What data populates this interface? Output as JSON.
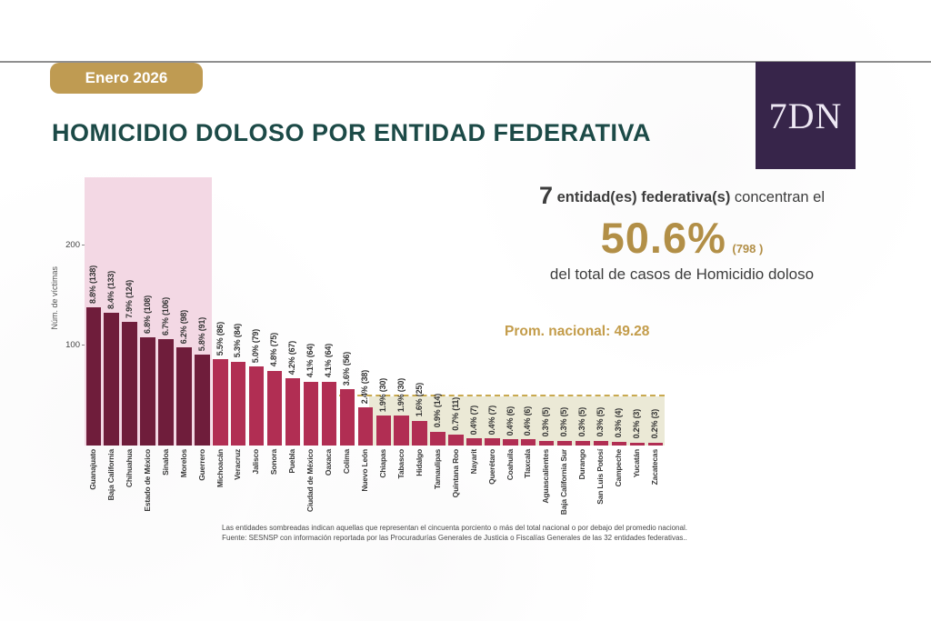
{
  "page": {
    "badge": "Enero 2026",
    "title": "HOMICIDIO DOLOSO POR ENTIDAD FEDERATIVA",
    "logo": "7DN"
  },
  "stats": {
    "count": "7",
    "count_label": "entidad(es) federativa(s)",
    "suffix": "concentran el",
    "percent": "50.6%",
    "total_cases": "(798 )",
    "of_total": "del total de casos de",
    "crime_type": "Homicidio doloso",
    "national_avg_label": "Prom. nacional: 49.28"
  },
  "footnote": {
    "line1": "Las entidades sombreadas indican aquellas que representan el cincuenta porciento o más del total nacional o por debajo del promedio nacional.",
    "line2": "Fuente: SESNSP con información reportada por las Procuradurías Generales de Justicia o Fiscalías Generales de las 32 entidades federativas.."
  },
  "chart_data": {
    "type": "bar",
    "title": "Homicidio doloso por entidad federativa, Enero 2026",
    "ylabel": "Núm. de víctimas",
    "yticks": [
      100,
      200
    ],
    "ylim": [
      0,
      268
    ],
    "grid": false,
    "national_average": 49.28,
    "highlight_top_n": 7,
    "categories": [
      "Guanajuato",
      "Baja California",
      "Chihuahua",
      "Estado de México",
      "Sinaloa",
      "Morelos",
      "Guerrero",
      "Michoacán",
      "Veracruz",
      "Jalisco",
      "Sonora",
      "Puebla",
      "Ciudad de México",
      "Oaxaca",
      "Colima",
      "Nuevo León",
      "Chiapas",
      "Tabasco",
      "Hidalgo",
      "Tamaulipas",
      "Quintana Roo",
      "Nayarit",
      "Querétaro",
      "Coahuila",
      "Tlaxcala",
      "Aguascalientes",
      "Baja California Sur",
      "Durango",
      "San Luis Potosí",
      "Campeche",
      "Yucatán",
      "Zacatecas"
    ],
    "values": [
      138,
      133,
      124,
      108,
      106,
      98,
      91,
      86,
      84,
      79,
      75,
      67,
      64,
      64,
      56,
      38,
      30,
      30,
      25,
      14,
      11,
      7,
      7,
      6,
      6,
      5,
      5,
      5,
      5,
      4,
      3,
      3
    ],
    "percents": [
      "8.8%",
      "8.4%",
      "7.9%",
      "6.8%",
      "6.7%",
      "6.2%",
      "5.8%",
      "5.5%",
      "5.3%",
      "5.0%",
      "4.8%",
      "4.2%",
      "4.1%",
      "4.1%",
      "3.6%",
      "2.4%",
      "1.9%",
      "1.9%",
      "1.6%",
      "0.9%",
      "0.7%",
      "0.4%",
      "0.4%",
      "0.4%",
      "0.4%",
      "0.3%",
      "0.3%",
      "0.3%",
      "0.3%",
      "0.3%",
      "0.2%",
      "0.2%"
    ],
    "colors": {
      "bar_top7": "#6f1d3b",
      "bar_rest": "#b12e53",
      "band_top7": "#f3d8e4",
      "band_below_avg": "#ebe9d6",
      "avg_line": "#c9a94f",
      "accent_gold": "#bf9b52",
      "title_teal": "#1c4a47",
      "logo_purple": "#37254a"
    }
  }
}
